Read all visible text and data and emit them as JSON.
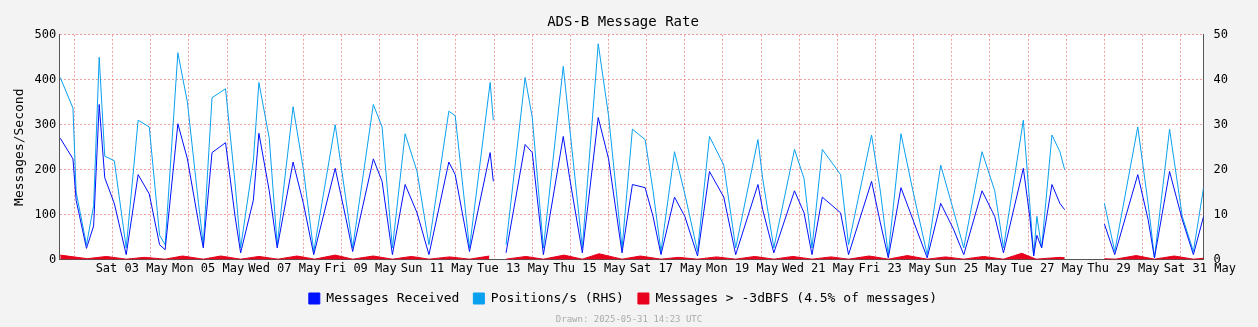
{
  "chart_data": {
    "type": "line",
    "title": "ADS-B Message Rate",
    "ylabel": "Messages/Second",
    "x": [
      "2025-05-01T15:00",
      "2025-05-01T23:00",
      "2025-05-02T01:00",
      "2025-05-02T07:30",
      "2025-05-02T12:00",
      "2025-05-02T15:30",
      "2025-05-02T19:00",
      "2025-05-03T01:00",
      "2025-05-03T08:30",
      "2025-05-03T16:00",
      "2025-05-03T23:00",
      "2025-05-04T05:30",
      "2025-05-04T09:00",
      "2025-05-04T17:00",
      "2025-05-04T23:00",
      "2025-05-05T06:00",
      "2025-05-05T09:00",
      "2025-05-05T14:30",
      "2025-05-05T23:00",
      "2025-05-06T05:00",
      "2025-05-06T08:30",
      "2025-05-06T16:30",
      "2025-05-06T20:00",
      "2025-05-07T02:30",
      "2025-05-07T07:30",
      "2025-05-07T17:30",
      "2025-05-08T00:00",
      "2025-05-08T06:30",
      "2025-05-08T20:00",
      "2025-05-09T02:30",
      "2025-05-09T07:00",
      "2025-05-09T20:00",
      "2025-05-10T01:30",
      "2025-05-10T08:00",
      "2025-05-10T16:00",
      "2025-05-10T23:30",
      "2025-05-11T07:00",
      "2025-05-11T19:30",
      "2025-05-11T23:30",
      "2025-05-12T08:30",
      "2025-05-12T21:30",
      "2025-05-12T23:30",
      "2025-05-13T02:00",
      "2025-05-13T07:30",
      "2025-05-13T19:30",
      "2025-05-14T00:00",
      "2025-05-14T07:00",
      "2025-05-14T19:30",
      "2025-05-14T23:30",
      "2025-05-15T07:30",
      "2025-05-15T17:30",
      "2025-05-16T00:00",
      "2025-05-16T08:30",
      "2025-05-16T15:00",
      "2025-05-16T23:00",
      "2025-05-17T04:00",
      "2025-05-17T09:00",
      "2025-05-17T17:30",
      "2025-05-18T00:00",
      "2025-05-18T08:00",
      "2025-05-18T15:30",
      "2025-05-19T00:30",
      "2025-05-19T08:00",
      "2025-05-19T22:00",
      "2025-05-20T01:00",
      "2025-05-20T08:00",
      "2025-05-20T21:00",
      "2025-05-21T03:00",
      "2025-05-21T08:00",
      "2025-05-21T14:30",
      "2025-05-22T02:00",
      "2025-05-22T07:00",
      "2025-05-22T21:30",
      "2025-05-23T03:00",
      "2025-05-23T08:00",
      "2025-05-23T16:00",
      "2025-05-23T23:30",
      "2025-05-24T08:30",
      "2025-05-24T17:00",
      "2025-05-25T01:00",
      "2025-05-25T07:30",
      "2025-05-25T19:00",
      "2025-05-26T03:00",
      "2025-05-26T08:30",
      "2025-05-26T21:00",
      "2025-05-27T01:00",
      "2025-05-27T03:30",
      "2025-05-27T05:30",
      "2025-05-27T08:30",
      "2025-05-27T15:00",
      "2025-05-27T20:00",
      "2025-05-27T23:00",
      "2025-05-28T12:00",
      "2025-05-29T00:00",
      "2025-05-29T06:30",
      "2025-05-29T21:00",
      "2025-05-30T03:30",
      "2025-05-30T07:30",
      "2025-05-30T17:00",
      "2025-05-31T01:00",
      "2025-05-31T08:00",
      "2025-05-31T14:23"
    ],
    "series": [
      {
        "name": "Messages Received",
        "color": "#0011ff",
        "values": [
          270,
          224,
          132,
          25,
          75,
          345,
          182,
          125,
          11,
          189,
          146,
          33,
          22,
          302,
          224,
          82,
          26,
          238,
          260,
          96,
          15,
          132,
          281,
          153,
          26,
          217,
          125,
          11,
          203,
          96,
          18,
          224,
          174,
          11,
          167,
          104,
          11,
          217,
          189,
          18,
          238,
          174,
          null,
          15,
          256,
          238,
          11,
          274,
          182,
          15,
          316,
          224,
          15,
          167,
          160,
          96,
          11,
          139,
          96,
          8,
          196,
          139,
          11,
          167,
          111,
          15,
          153,
          104,
          11,
          139,
          104,
          11,
          174,
          82,
          4,
          160,
          89,
          4,
          125,
          68,
          11,
          153,
          96,
          15,
          203,
          96,
          8,
          54,
          26,
          167,
          125,
          111,
          null,
          79,
          11,
          189,
          89,
          4,
          196,
          89,
          11,
          96
        ]
      },
      {
        "name": "Messages > -3dBFS (4.5% of messages)",
        "type": "area",
        "color": "#e8001c",
        "x": [
          "2025-05-01T15:00",
          "2025-05-02T08:00",
          "2025-05-02T20:00",
          "2025-05-03T08:30",
          "2025-05-03T20:00",
          "2025-05-04T09:00",
          "2025-05-04T20:00",
          "2025-05-05T09:00",
          "2025-05-05T20:00",
          "2025-05-06T08:30",
          "2025-05-06T20:00",
          "2025-05-07T08:00",
          "2025-05-07T20:00",
          "2025-05-08T07:00",
          "2025-05-08T20:00",
          "2025-05-09T07:00",
          "2025-05-09T20:00",
          "2025-05-10T08:00",
          "2025-05-10T20:00",
          "2025-05-11T07:00",
          "2025-05-11T20:00",
          "2025-05-12T08:30",
          "2025-05-12T21:00",
          "2025-05-13T02:00",
          "2025-05-13T07:30",
          "2025-05-13T20:00",
          "2025-05-14T07:00",
          "2025-05-14T20:00",
          "2025-05-15T07:30",
          "2025-05-15T18:00",
          "2025-05-16T08:30",
          "2025-05-16T20:00",
          "2025-05-17T09:00",
          "2025-05-17T20:00",
          "2025-05-18T08:00",
          "2025-05-18T20:00",
          "2025-05-19T08:00",
          "2025-05-19T20:00",
          "2025-05-20T08:00",
          "2025-05-20T20:00",
          "2025-05-21T08:00",
          "2025-05-21T20:00",
          "2025-05-22T07:00",
          "2025-05-22T20:00",
          "2025-05-23T08:00",
          "2025-05-23T20:00",
          "2025-05-24T08:30",
          "2025-05-24T20:00",
          "2025-05-25T07:30",
          "2025-05-25T20:00",
          "2025-05-26T08:30",
          "2025-05-26T20:00",
          "2025-05-27T05:00",
          "2025-05-27T20:00",
          "2025-05-27T23:00",
          "2025-05-28T12:00",
          "2025-05-29T00:00",
          "2025-05-29T07:00",
          "2025-05-29T20:00",
          "2025-05-30T07:30",
          "2025-05-30T20:00",
          "2025-05-31T08:00",
          "2025-05-31T14:23"
        ],
        "values": [
          10,
          2,
          7,
          1,
          5,
          1,
          8,
          1,
          8,
          1,
          7,
          1,
          8,
          1,
          10,
          1,
          8,
          1,
          7,
          1,
          6,
          1,
          8,
          null,
          1,
          7,
          1,
          10,
          1,
          13,
          1,
          8,
          1,
          5,
          1,
          6,
          1,
          7,
          1,
          7,
          1,
          6,
          1,
          8,
          1,
          9,
          1,
          6,
          1,
          7,
          1,
          14,
          1,
          5,
          4,
          null,
          2,
          1,
          9,
          1,
          8,
          1,
          3
        ]
      },
      {
        "name": "Positions/s (RHS)",
        "color": "#0aa0f0",
        "axis": "y2",
        "values": [
          40.5,
          33.7,
          15,
          3.3,
          12,
          45,
          23,
          22,
          2.6,
          31,
          29.5,
          5.4,
          3.3,
          46,
          35,
          12.5,
          3.3,
          36,
          38,
          17,
          2.6,
          22,
          39.4,
          27,
          3.3,
          34,
          20,
          1.8,
          30,
          14,
          2.6,
          34.5,
          29.5,
          2.6,
          28,
          19.6,
          3.3,
          33,
          32,
          2.6,
          39.4,
          31,
          null,
          3.3,
          40.5,
          31.6,
          2.6,
          43,
          29.5,
          2.6,
          48,
          32,
          2.6,
          29,
          26.7,
          15.3,
          1.8,
          24,
          14.6,
          1.8,
          27.4,
          21,
          2.6,
          26.7,
          18,
          2.6,
          24.5,
          18,
          2.6,
          24.5,
          18.9,
          3.3,
          27.7,
          15.3,
          1.1,
          28,
          15.3,
          1.1,
          21,
          11,
          2.6,
          24,
          15.3,
          2.6,
          31,
          12.5,
          1.1,
          9.6,
          2.6,
          27.7,
          24,
          20,
          null,
          12.5,
          1.8,
          29.5,
          12.5,
          0.4,
          29,
          9.6,
          1.8,
          16
        ]
      }
    ],
    "xlim": [
      "2025-05-01T14:23",
      "2025-05-31T14:23"
    ],
    "xticks": [
      {
        "value": "2025-05-02T00:00",
        "label": null
      },
      {
        "value": "2025-05-03T00:00",
        "label": null
      },
      {
        "value": "2025-05-03T12:00",
        "label": "Sat 03 May"
      },
      {
        "value": "2025-05-04T00:00",
        "label": null
      },
      {
        "value": "2025-05-05T00:00",
        "label": null
      },
      {
        "value": "2025-05-05T12:00",
        "label": "Mon 05 May"
      },
      {
        "value": "2025-05-06T00:00",
        "label": null
      },
      {
        "value": "2025-05-07T00:00",
        "label": null
      },
      {
        "value": "2025-05-07T12:00",
        "label": "Wed 07 May"
      },
      {
        "value": "2025-05-08T00:00",
        "label": null
      },
      {
        "value": "2025-05-09T00:00",
        "label": null
      },
      {
        "value": "2025-05-09T12:00",
        "label": "Fri 09 May"
      },
      {
        "value": "2025-05-10T00:00",
        "label": null
      },
      {
        "value": "2025-05-11T00:00",
        "label": null
      },
      {
        "value": "2025-05-11T12:00",
        "label": "Sun 11 May"
      },
      {
        "value": "2025-05-12T00:00",
        "label": null
      },
      {
        "value": "2025-05-13T00:00",
        "label": null
      },
      {
        "value": "2025-05-13T12:00",
        "label": "Tue 13 May"
      },
      {
        "value": "2025-05-14T00:00",
        "label": null
      },
      {
        "value": "2025-05-15T00:00",
        "label": null
      },
      {
        "value": "2025-05-15T12:00",
        "label": "Thu 15 May"
      },
      {
        "value": "2025-05-16T00:00",
        "label": null
      },
      {
        "value": "2025-05-17T00:00",
        "label": null
      },
      {
        "value": "2025-05-17T12:00",
        "label": "Sat 17 May"
      },
      {
        "value": "2025-05-18T00:00",
        "label": null
      },
      {
        "value": "2025-05-19T00:00",
        "label": null
      },
      {
        "value": "2025-05-19T12:00",
        "label": "Mon 19 May"
      },
      {
        "value": "2025-05-20T00:00",
        "label": null
      },
      {
        "value": "2025-05-21T00:00",
        "label": null
      },
      {
        "value": "2025-05-21T12:00",
        "label": "Wed 21 May"
      },
      {
        "value": "2025-05-22T00:00",
        "label": null
      },
      {
        "value": "2025-05-23T00:00",
        "label": null
      },
      {
        "value": "2025-05-23T12:00",
        "label": "Fri 23 May"
      },
      {
        "value": "2025-05-24T00:00",
        "label": null
      },
      {
        "value": "2025-05-25T00:00",
        "label": null
      },
      {
        "value": "2025-05-25T12:00",
        "label": "Sun 25 May"
      },
      {
        "value": "2025-05-26T00:00",
        "label": null
      },
      {
        "value": "2025-05-27T00:00",
        "label": null
      },
      {
        "value": "2025-05-27T12:00",
        "label": "Tue 27 May"
      },
      {
        "value": "2025-05-28T00:00",
        "label": null
      },
      {
        "value": "2025-05-29T00:00",
        "label": null
      },
      {
        "value": "2025-05-29T12:00",
        "label": "Thu 29 May"
      },
      {
        "value": "2025-05-30T00:00",
        "label": null
      },
      {
        "value": "2025-05-31T00:00",
        "label": null
      },
      {
        "value": "2025-05-31T12:00",
        "label": "Sat 31 May"
      }
    ],
    "ylim": [
      0,
      500
    ],
    "yticks": [
      0,
      100,
      200,
      300,
      400,
      500
    ],
    "y2lim": [
      0,
      50
    ],
    "y2ticks": [
      0,
      10,
      20,
      30,
      40,
      50
    ],
    "grid": true,
    "legend": "bottom",
    "marker": "none",
    "line_style": "solid",
    "annotations": [
      "Drawn: 2025-05-31 14:23 UTC"
    ]
  }
}
